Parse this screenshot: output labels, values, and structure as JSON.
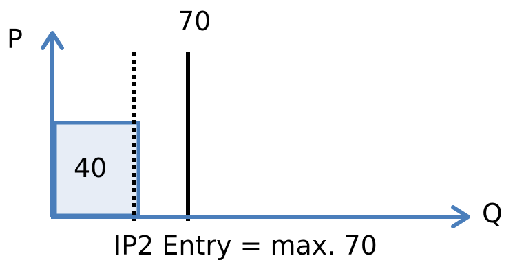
{
  "axes": {
    "y_label": "P",
    "x_label": "Q"
  },
  "markers": {
    "solid_line_label": "70",
    "box_label": "40"
  },
  "caption": "IP2 Entry = max. 70",
  "colors": {
    "axis": "#4a7ebb",
    "box_fill": "#e7edf6",
    "box_stroke": "#4a7ebb",
    "solid_line": "#000000",
    "dotted_line": "#000000",
    "text": "#000000"
  },
  "icons": {
    "y_axis_arrow": "arrow-up-icon",
    "x_axis_arrow": "arrow-right-icon"
  }
}
